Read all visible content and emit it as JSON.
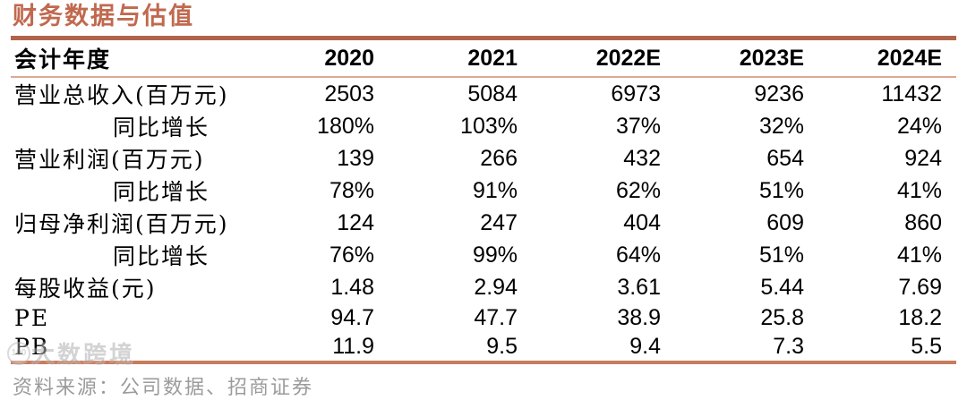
{
  "page": {
    "title": "财务数据与估值"
  },
  "table": {
    "header": {
      "label": "会计年度",
      "years": [
        "2020",
        "2021",
        "2022E",
        "2023E",
        "2024E"
      ]
    },
    "rows": [
      {
        "label": "营业总收入(百万元)",
        "indent": false,
        "values": [
          "2503",
          "5084",
          "6973",
          "9236",
          "11432"
        ]
      },
      {
        "label": "同比增长",
        "indent": true,
        "values": [
          "180%",
          "103%",
          "37%",
          "32%",
          "24%"
        ]
      },
      {
        "label": "营业利润(百万元)",
        "indent": false,
        "values": [
          "139",
          "266",
          "432",
          "654",
          "924"
        ]
      },
      {
        "label": "同比增长",
        "indent": true,
        "values": [
          "78%",
          "91%",
          "62%",
          "51%",
          "41%"
        ]
      },
      {
        "label": "归母净利润(百万元)",
        "indent": false,
        "values": [
          "124",
          "247",
          "404",
          "609",
          "860"
        ]
      },
      {
        "label": "同比增长",
        "indent": true,
        "values": [
          "76%",
          "99%",
          "64%",
          "51%",
          "41%"
        ]
      },
      {
        "label": "每股收益(元)",
        "indent": false,
        "values": [
          "1.48",
          "2.94",
          "3.61",
          "5.44",
          "7.69"
        ]
      },
      {
        "label": "PE",
        "indent": false,
        "values": [
          "94.7",
          "47.7",
          "38.9",
          "25.8",
          "18.2"
        ]
      },
      {
        "label": "PB",
        "indent": false,
        "values": [
          "11.9",
          "9.5",
          "9.4",
          "7.3",
          "5.5"
        ]
      }
    ]
  },
  "footer": {
    "source": "资料来源：公司数据、招商证券"
  },
  "watermark": {
    "logo_text": "100",
    "text": "大数跨境"
  },
  "colors": {
    "accent_title": "#c0694f",
    "rule_top": "#af644b",
    "rule_header": "#dca893",
    "rule_bottom": "#c77c5e",
    "caption_text": "#9b9b9b"
  }
}
